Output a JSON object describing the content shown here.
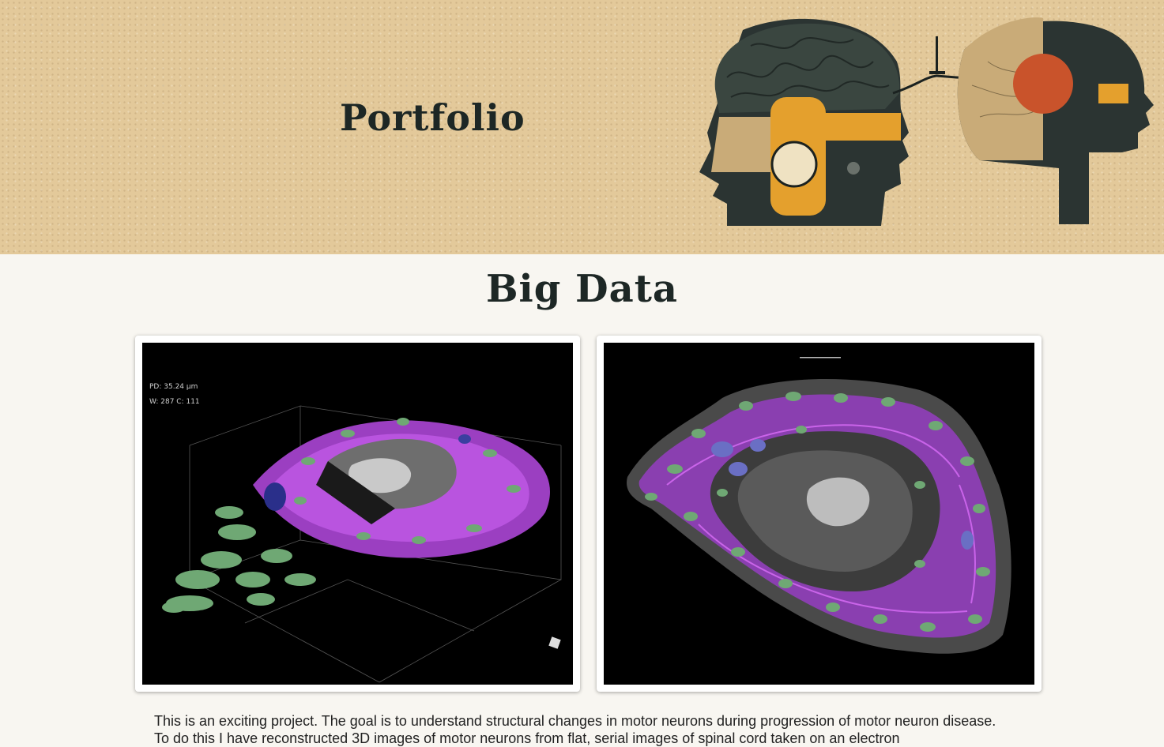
{
  "header": {
    "title": "Portfolio",
    "background": "#e3c99a",
    "hero_image_icon": "two-heads-brain-illustration-icon"
  },
  "section": {
    "title": "Big Data"
  },
  "gallery": [
    {
      "name": "3d-neuron-reconstruction",
      "overlay_lines": [
        "PD: 35.24 µm",
        "W: 287 C: 111"
      ]
    },
    {
      "name": "neuron-cross-section"
    }
  ],
  "description": {
    "text": "This is an exciting project. The goal is to understand structural changes in motor neurons during progression of motor neuron disease. To do this I have reconstructed 3D images of motor neurons from flat, serial images of spinal cord taken on an electron"
  },
  "colors": {
    "page_background": "#f8f6f1",
    "heading": "#1d2725",
    "mitochondria_green": "#6fa874",
    "membrane_purple": "#c04fe0",
    "accent_orange": "#e4a02d"
  }
}
